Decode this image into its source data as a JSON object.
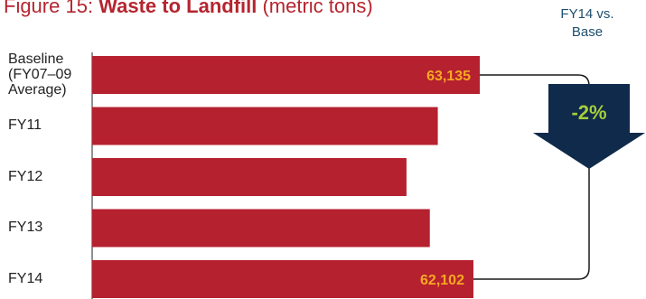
{
  "title": {
    "prefix": "Figure 15: ",
    "main": "Waste to Landfill",
    "suffix": " (metric tons)"
  },
  "comparison": {
    "header_line1": "FY14 vs.",
    "header_line2": "Base",
    "value": "-2%"
  },
  "colors": {
    "bar": "#b5212f",
    "title": "#b5252f",
    "value_label": "#f7a823",
    "arrow": "#0f2a4a",
    "arrow_text": "#a6ce39",
    "connector": "#1a1a1a"
  },
  "chart_data": {
    "type": "bar",
    "orientation": "horizontal",
    "categories": [
      [
        "Baseline",
        "(FY07–09",
        "Average)"
      ],
      [
        "FY11"
      ],
      [
        "FY12"
      ],
      [
        "FY13"
      ],
      [
        "FY14"
      ]
    ],
    "values": [
      63135,
      56300,
      51200,
      55000,
      62102
    ],
    "data_labels": [
      "63,135",
      "",
      "",
      "",
      "62,102"
    ],
    "xlim": [
      0,
      63135
    ]
  }
}
